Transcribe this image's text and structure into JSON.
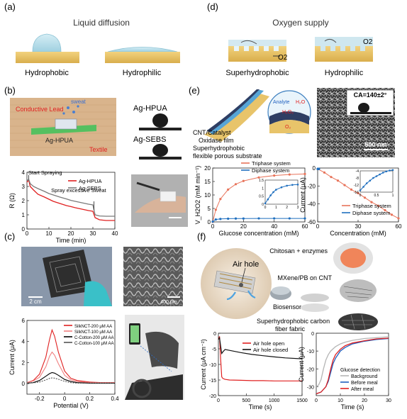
{
  "panels": {
    "a": {
      "label": "(a)",
      "title": "Liquid diffusion",
      "captions": [
        "Hydrophobic",
        "Hydrophilic"
      ]
    },
    "b": {
      "label": "(b)",
      "photo_labels": {
        "conductive_lead": "Conductive Lead",
        "sweat": "sweat",
        "device": "Ag-HPUA",
        "textile": "Textile"
      },
      "droplet_labels": [
        "Ag-HPUA",
        "Ag-SEBS"
      ],
      "chart_data": {
        "type": "line",
        "xlabel": "Time (min)",
        "ylabel": "R (Ω)",
        "xlim": [
          0,
          40
        ],
        "ylim": [
          0,
          4
        ],
        "xticks": [
          0,
          10,
          20,
          30,
          40
        ],
        "yticks": [
          0,
          1,
          2,
          3,
          4
        ],
        "legend_position": "top-right",
        "annotations": [
          "Start Spraying",
          "Spray excessive Sweat"
        ],
        "series": [
          {
            "name": "Ag-HPUA",
            "color": "#e02020",
            "x": [
              0,
              0.8,
              1.5,
              3,
              5,
              8,
              10,
              12,
              15,
              18,
              20,
              22,
              25,
              28,
              30,
              31,
              33,
              36,
              40
            ],
            "y": [
              3.3,
              3.45,
              3.0,
              2.75,
              2.45,
              2.25,
              2.1,
              1.95,
              1.8,
              1.65,
              1.58,
              1.5,
              1.4,
              1.3,
              1.25,
              0.8,
              0.65,
              0.6,
              0.6
            ]
          },
          {
            "name": "Ag-SEBS",
            "color": "#7a7a7a",
            "x": [
              0,
              0.8,
              1.5,
              3,
              5,
              8,
              10,
              12,
              15,
              18,
              20,
              22,
              25,
              28,
              30,
              31,
              33,
              36,
              40
            ],
            "y": [
              3.4,
              3.5,
              3.2,
              3.0,
              2.85,
              2.65,
              2.5,
              2.4,
              2.25,
              2.12,
              2.02,
              1.95,
              1.85,
              1.75,
              1.7,
              1.0,
              0.92,
              0.9,
              0.9
            ]
          }
        ]
      }
    },
    "c": {
      "label": "(c)",
      "scale_bars": [
        "2 cm",
        "400 μm"
      ],
      "chart_data": {
        "type": "line",
        "xlabel": "Potential (V)",
        "ylabel": "Current (μA)",
        "xlim": [
          -0.3,
          0.4
        ],
        "ylim": [
          -1,
          6
        ],
        "xticks": [
          -0.2,
          0.0,
          0.2,
          0.4
        ],
        "yticks": [
          0,
          2,
          4,
          6
        ],
        "legend_position": "top-right",
        "series": [
          {
            "name": "SilkNCT-200 μM AA",
            "color": "#e02020",
            "x": [
              -0.3,
              -0.25,
              -0.2,
              -0.15,
              -0.12,
              -0.1,
              -0.08,
              -0.05,
              0,
              0.05,
              0.1,
              0.2,
              0.3,
              0.4
            ],
            "y": [
              0.1,
              0.3,
              0.9,
              2.5,
              4.2,
              5.1,
              4.5,
              3.0,
              1.2,
              0.5,
              0.3,
              0.15,
              0.1,
              0.1
            ]
          },
          {
            "name": "SilkNCT-100 μM AA",
            "color": "#f08080",
            "x": [
              -0.3,
              -0.25,
              -0.2,
              -0.15,
              -0.12,
              -0.1,
              -0.08,
              -0.05,
              0,
              0.05,
              0.1,
              0.2,
              0.3,
              0.4
            ],
            "y": [
              0.1,
              0.25,
              0.6,
              1.6,
              2.6,
              3.0,
              2.7,
              1.9,
              0.8,
              0.35,
              0.2,
              0.1,
              0.1,
              0.1
            ]
          },
          {
            "name": "C-Cotton-200 μM AA",
            "color": "#000000",
            "x": [
              -0.3,
              -0.25,
              -0.2,
              -0.15,
              -0.12,
              -0.1,
              -0.08,
              -0.05,
              0,
              0.05,
              0.1,
              0.2,
              0.3,
              0.4
            ],
            "y": [
              0.05,
              0.1,
              0.3,
              0.7,
              0.95,
              1.05,
              1.0,
              0.8,
              0.4,
              0.2,
              0.1,
              0.05,
              0.05,
              0.05
            ]
          },
          {
            "name": "C-Cotton-100 μM AA",
            "color": "#555555",
            "dashed": true,
            "x": [
              -0.3,
              -0.25,
              -0.2,
              -0.15,
              -0.12,
              -0.1,
              -0.08,
              -0.05,
              0,
              0.05,
              0.1,
              0.2,
              0.3,
              0.4
            ],
            "y": [
              0.05,
              0.08,
              0.15,
              0.35,
              0.5,
              0.55,
              0.52,
              0.42,
              0.22,
              0.1,
              0.05,
              0.03,
              0.03,
              0.03
            ]
          }
        ]
      }
    },
    "d": {
      "label": "(d)",
      "title": "Oxygen supply",
      "captions": [
        "Superhydrophobic",
        "Hydrophilic"
      ],
      "gas_labels": [
        "O2",
        "O2"
      ]
    },
    "e": {
      "label": "(e)",
      "diagram_labels": [
        "CNT/Catalyst",
        "Oxidase film",
        "Superhydrophobic",
        "flexible porous substrate"
      ],
      "inset_labels": {
        "analyte": "Analyte",
        "water": "H₂O",
        "peroxide": "H₂O₂",
        "oxygen": "O₂"
      },
      "contact_angle": "CA=140±2°",
      "scale_bar": "500 nm",
      "chart_data": [
        {
          "type": "line",
          "xlabel": "Glucose concentration (mM)",
          "ylabel": "V_H2O2 (mM min⁻¹)",
          "xlim": [
            0,
            60
          ],
          "ylim": [
            0,
            20
          ],
          "xticks": [
            0,
            20,
            40,
            60
          ],
          "yticks": [
            0,
            5,
            10,
            15,
            20
          ],
          "legend_position": "top",
          "series": [
            {
              "name": "Triphase system",
              "color": "#e8735a",
              "x": [
                0,
                2,
                5,
                10,
                15,
                20,
                30,
                40,
                50,
                60
              ],
              "y": [
                0,
                4.5,
                8.5,
                12,
                14,
                15.2,
                16.5,
                17.2,
                17.6,
                17.8
              ]
            },
            {
              "name": "Diphase system",
              "color": "#1f6fbf",
              "x": [
                0,
                2,
                5,
                10,
                15,
                20,
                30,
                40,
                50,
                60
              ],
              "y": [
                0.1,
                0.9,
                1.1,
                1.2,
                1.25,
                1.25,
                1.3,
                1.3,
                1.3,
                1.3
              ]
            }
          ],
          "inset": {
            "xticks": [
              0,
              1,
              2,
              3
            ],
            "yticks": [
              0.0,
              0.5,
              1.0,
              1.5
            ],
            "x": [
              0,
              0.25,
              0.5,
              0.75,
              1,
              1.5,
              2,
              2.5,
              3
            ],
            "y": [
              0.05,
              0.3,
              0.55,
              0.75,
              0.9,
              1.05,
              1.15,
              1.2,
              1.22
            ]
          }
        },
        {
          "type": "line",
          "xlabel": "Concentration (mM)",
          "ylabel": "Current (μA)",
          "xlim": [
            0,
            60
          ],
          "ylim": [
            -60,
            0
          ],
          "xticks": [
            0,
            30,
            60
          ],
          "yticks": [
            0,
            -20,
            -40,
            -60
          ],
          "legend_position": "bottom",
          "series": [
            {
              "name": "Triphase system",
              "color": "#e8735a",
              "x": [
                0,
                5,
                10,
                15,
                20,
                25,
                30,
                35,
                40,
                45,
                50,
                55,
                60
              ],
              "y": [
                -1,
                -5,
                -10,
                -14,
                -19,
                -24,
                -28,
                -33,
                -38,
                -42,
                -47,
                -52,
                -56
              ]
            },
            {
              "name": "Diphase system",
              "color": "#1f6fbf",
              "x": [
                0,
                0.1,
                0.2,
                0.3,
                0.5,
                0.7,
                0.9,
                1.0
              ],
              "y": [
                -1,
                -1,
                -1,
                -1,
                -1,
                -1,
                -1,
                -1
              ]
            }
          ],
          "inset": {
            "xticks": [
              0.0,
              0.5,
              1.0
            ],
            "yticks": [
              -4,
              -8,
              -12,
              -16
            ],
            "x": [
              0,
              0.1,
              0.2,
              0.3,
              0.4,
              0.5,
              0.6,
              0.7,
              0.8,
              0.9,
              1.0
            ],
            "y": [
              -15,
              -13,
              -11,
              -9.5,
              -8,
              -7,
              -6,
              -5,
              -4.3,
              -3.8,
              -3.5
            ]
          }
        }
      ]
    },
    "f": {
      "label": "(f)",
      "photo_label": "Air hole",
      "layer_labels": [
        "Chitosan + enzymes",
        "MXene/PB on CNT",
        "Biosensor",
        "Superhydrophobic carbon",
        "fiber fabric"
      ],
      "chart_data": [
        {
          "type": "line",
          "xlabel": "Time (s)",
          "ylabel": "Current (μA cm⁻²)",
          "xlim": [
            0,
            1500
          ],
          "ylim": [
            -20,
            0
          ],
          "xticks": [
            0,
            500,
            1000,
            1500
          ],
          "yticks": [
            0,
            -5,
            -10,
            -15,
            -20
          ],
          "legend_position": "top-right",
          "series": [
            {
              "name": "Air hole open",
              "color": "#e02020",
              "x": [
                0,
                20,
                40,
                60,
                80,
                120,
                200,
                400,
                600,
                800,
                1000,
                1200,
                1500
              ],
              "y": [
                -2,
                -1,
                -8,
                -14,
                -14.5,
                -14.8,
                -15,
                -15.1,
                -15.2,
                -15.2,
                -15.3,
                -15.3,
                -15.3
              ]
            },
            {
              "name": "Air hole closed",
              "color": "#111111",
              "x": [
                0,
                20,
                40,
                60,
                80,
                120,
                200,
                400,
                600,
                800,
                1000,
                1200,
                1500
              ],
              "y": [
                -2,
                -1.5,
                -4,
                -6.5,
                -6,
                -5.2,
                -5.5,
                -6.2,
                -6.8,
                -7.2,
                -7.6,
                -7.9,
                -8.2
              ]
            }
          ]
        },
        {
          "type": "line",
          "xlabel": "Time (s)",
          "ylabel": "Current (μA)",
          "xlim": [
            0,
            30
          ],
          "ylim": [
            -35,
            0
          ],
          "xticks": [
            0,
            10,
            20,
            30
          ],
          "yticks": [
            0,
            -10,
            -20,
            -30
          ],
          "legend_title": "Glucose detection",
          "legend_position": "bottom-right",
          "series": [
            {
              "name": "Background",
              "color": "#b5b5b5",
              "x": [
                0,
                1,
                2,
                3,
                4,
                5,
                6,
                8,
                10,
                12,
                15,
                20,
                25,
                30
              ],
              "y": [
                -30,
                -29,
                -26,
                -20,
                -15,
                -12,
                -10,
                -7.5,
                -6,
                -5,
                -4,
                -3,
                -2.5,
                -2
              ]
            },
            {
              "name": "Before meal",
              "color": "#1f5fbf",
              "x": [
                0,
                2,
                4,
                5,
                6,
                7,
                8,
                10,
                12,
                15,
                20,
                25,
                30
              ],
              "y": [
                -34,
                -33,
                -30,
                -27,
                -22,
                -17,
                -14,
                -10,
                -8,
                -6,
                -4.5,
                -3.5,
                -3
              ]
            },
            {
              "name": "After meal",
              "color": "#e02020",
              "x": [
                0,
                2,
                4,
                5,
                6,
                7,
                8,
                10,
                12,
                15,
                20,
                25,
                30
              ],
              "y": [
                -34,
                -33,
                -30,
                -26,
                -20,
                -15,
                -12,
                -9,
                -7,
                -5.5,
                -4.2,
                -3.2,
                -2.8
              ]
            }
          ]
        }
      ]
    }
  },
  "colors": {
    "substrate": "#e8c46a",
    "droplet": "#b6dde8",
    "text_gray": "#555555"
  }
}
